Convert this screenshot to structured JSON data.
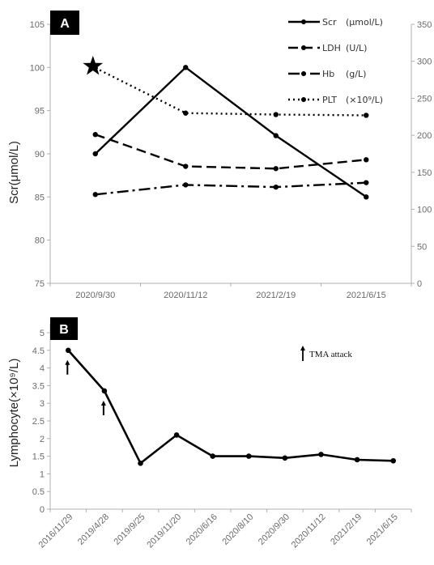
{
  "chart_data": [
    {
      "panel": "A",
      "type": "line",
      "x": [
        "2020/9/30",
        "2020/11/12",
        "2021/2/19",
        "2021/6/15"
      ],
      "ylabel": "Scr(μmol/L)",
      "ylim": [
        75,
        105
      ],
      "yticks": [
        75,
        80,
        85,
        90,
        95,
        100,
        105
      ],
      "y2lim": [
        0,
        350
      ],
      "y2ticks": [
        0,
        50,
        100,
        150,
        200,
        250,
        300,
        350
      ],
      "grid": false,
      "legend_position": "top-right",
      "series": [
        {
          "name": "Scr",
          "unit": "(μmol/L)",
          "axis": "left",
          "style": "solid",
          "values": [
            90,
            100,
            92.1,
            85
          ]
        },
        {
          "name": "LDH",
          "unit": "(U/L)",
          "axis": "right",
          "style": "dashed",
          "values": [
            201,
            158,
            155,
            167
          ]
        },
        {
          "name": "Hb",
          "unit": "(g/L)",
          "axis": "right",
          "style": "dashdot",
          "values": [
            120,
            133,
            130,
            136
          ]
        },
        {
          "name": "PLT",
          "unit": "(×10⁹/L)",
          "axis": "right",
          "style": "dotted",
          "values": [
            291,
            230,
            228,
            227
          ]
        }
      ],
      "annotations": [
        {
          "type": "star",
          "series": "PLT",
          "x": "2020/9/30"
        }
      ]
    },
    {
      "panel": "B",
      "type": "line",
      "x": [
        "2016/11/29",
        "2019/4/28",
        "2019/9/25",
        "2019/11/20",
        "2020/6/16",
        "2020/8/10",
        "2020/9/30",
        "2020/11/12",
        "2021/2/19",
        "2021/6/15"
      ],
      "ylabel": "Lymphocyte(×10⁹/L)",
      "ylim": [
        0,
        5
      ],
      "yticks": [
        0,
        0.5,
        1,
        1.5,
        2,
        2.5,
        3,
        3.5,
        4,
        4.5,
        5
      ],
      "grid": false,
      "series": [
        {
          "name": "Lymphocyte",
          "values": [
            4.5,
            3.35,
            1.3,
            2.1,
            1.5,
            1.5,
            1.45,
            1.55,
            1.4,
            1.37
          ]
        }
      ],
      "annotations": [
        {
          "type": "arrow",
          "x": "2016/11/29"
        },
        {
          "type": "arrow",
          "x": "2019/4/28"
        }
      ],
      "legend_text": "TMA attack",
      "legend_position": "top-right"
    }
  ],
  "labels": {
    "panel_a": "A",
    "panel_b": "B"
  },
  "colors": {
    "line": "#000000",
    "axis": "#b0b0b0",
    "label_bg": "#000000"
  }
}
